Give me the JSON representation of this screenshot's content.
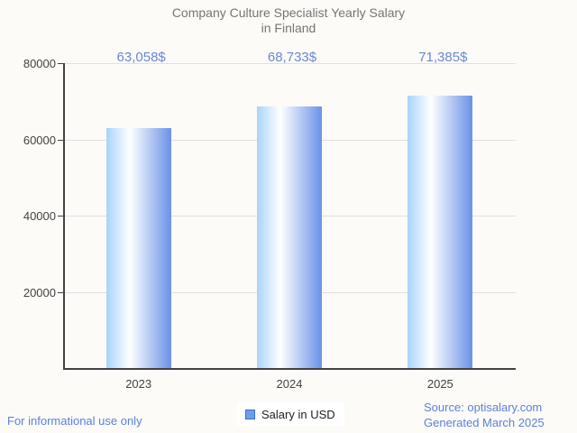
{
  "chart_data": {
    "type": "bar",
    "title": "Company Culture Specialist Yearly Salary in Finland",
    "title_lines": [
      "Company Culture Specialist Yearly Salary",
      "in Finland"
    ],
    "categories": [
      "2023",
      "2024",
      "2025"
    ],
    "values": [
      63058,
      68733,
      71385
    ],
    "value_labels": [
      "63,058$",
      "68,733$",
      "71,385$"
    ],
    "series_name": "Salary in USD",
    "ylim": [
      0,
      80000
    ],
    "yticks": [
      20000,
      40000,
      60000,
      80000
    ],
    "grid": true,
    "legend_position": "bottom-center"
  },
  "legend": {
    "label": "Salary in USD"
  },
  "footer": {
    "disclaimer": "For informational use only",
    "source": "Source: optisalary.com",
    "generated": "Generated March 2025"
  },
  "colors": {
    "background": "#fcfbf7",
    "title": "#757575",
    "annotation": "#6b87d8",
    "axis_label": "#424242",
    "axis_line": "#424242",
    "gridline": "#e0e0e0",
    "bar_gradient_left": "#a9d3fb",
    "bar_gradient_mid": "#ffffff",
    "bar_gradient_right": "#6a92e8",
    "legend_marker_fill": "#6d9eeb",
    "legend_marker_border": "#3f6ec6",
    "footer_text": "#5b80e0"
  }
}
